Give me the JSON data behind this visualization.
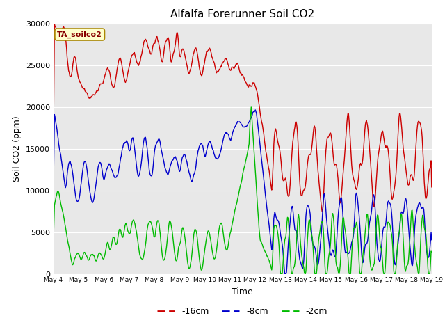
{
  "title": "Alfalfa Forerunner Soil CO2",
  "xlabel": "Time",
  "ylabel": "Soil CO2 (ppm)",
  "ylim": [
    0,
    30000
  ],
  "yticks": [
    0,
    5000,
    10000,
    15000,
    20000,
    25000,
    30000
  ],
  "annotation": "TA_soilco2",
  "line_colors": {
    "16cm": "#cc0000",
    "8cm": "#0000cc",
    "2cm": "#00bb00"
  },
  "legend_labels": [
    "-16cm",
    "-8cm",
    "-2cm"
  ],
  "background_color": "#e8e8e8",
  "fig_background": "#ffffff",
  "xtick_labels": [
    "May 4",
    "May 5",
    "May 6",
    "May 7",
    "May 8",
    "May 9",
    "May 10",
    "May 11",
    "May 12",
    "May 13",
    "May 14",
    "May 15",
    "May 16",
    "May 17",
    "May 18",
    "May 19"
  ],
  "n_points": 720,
  "days": 15
}
